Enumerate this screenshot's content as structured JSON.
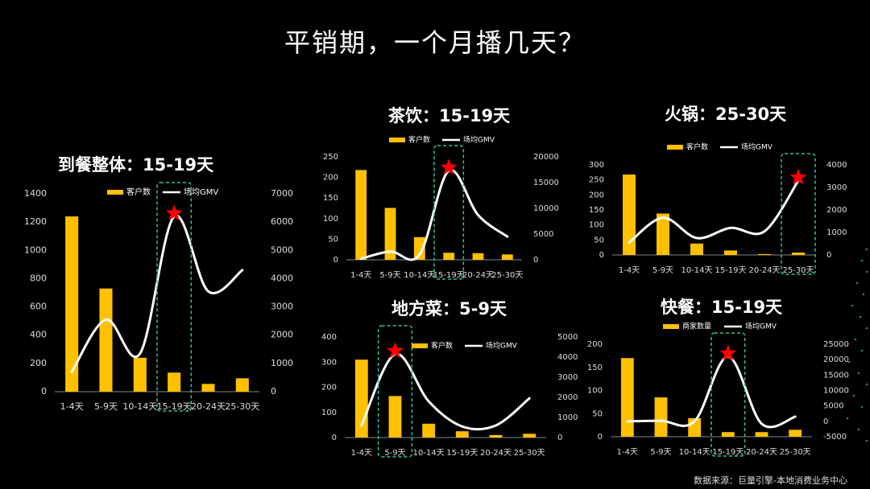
{
  "page": {
    "title": "平销期，一个月播几天？",
    "source": "数据来源：巨量引擎-本地消费业务中心"
  },
  "colors": {
    "bar": "#FFC000",
    "line": "#FFFFFF",
    "highlight": "#2FC0A0",
    "star": "#FF0000",
    "background": "#000000"
  },
  "chart_data": [
    {
      "type": "bar",
      "title": "到餐整体：15-19天",
      "categories": [
        "1-4天",
        "5-9天",
        "10-14天",
        "15-19天",
        "20-24天",
        "25-30天"
      ],
      "series": [
        {
          "name": "客户数",
          "type": "bar",
          "axis": "left",
          "values": [
            1240,
            730,
            240,
            135,
            55,
            95
          ]
        },
        {
          "name": "场均GMV",
          "type": "line",
          "axis": "right",
          "values": [
            700,
            2550,
            1350,
            6200,
            3550,
            4300
          ]
        }
      ],
      "ylim": [
        0,
        1400
      ],
      "yticks": [
        0,
        200,
        400,
        600,
        800,
        1000,
        1200,
        1400
      ],
      "y2lim": [
        0,
        7000
      ],
      "y2ticks": [
        0,
        1000,
        2000,
        3000,
        4000,
        5000,
        6000,
        7000
      ],
      "highlight_category": "15-19天",
      "grid": false,
      "legend": "top"
    },
    {
      "type": "bar",
      "title": "茶饮：15-19天",
      "categories": [
        "1-4天",
        "5-9天",
        "10-14天",
        "15-19天",
        "20-24天",
        "25-30天"
      ],
      "series": [
        {
          "name": "客户数",
          "type": "bar",
          "axis": "left",
          "values": [
            218,
            126,
            55,
            17,
            16,
            13
          ]
        },
        {
          "name": "场均GMV",
          "type": "line",
          "axis": "right",
          "values": [
            200,
            1600,
            1000,
            17300,
            8700,
            4500
          ]
        }
      ],
      "ylim": [
        0,
        250
      ],
      "yticks": [
        0,
        50,
        100,
        150,
        200,
        250
      ],
      "y2lim": [
        0,
        20000
      ],
      "y2ticks": [
        0,
        5000,
        10000,
        15000,
        20000
      ],
      "highlight_category": "15-19天",
      "grid": false,
      "legend": "top"
    },
    {
      "type": "bar",
      "title": "火锅：25-30天",
      "categories": [
        "1-4天",
        "5-9天",
        "10-14天",
        "15-19天",
        "20-24天",
        "25-30天"
      ],
      "series": [
        {
          "name": "客户数",
          "type": "bar",
          "axis": "left",
          "values": [
            268,
            138,
            38,
            15,
            3,
            8
          ]
        },
        {
          "name": "场均GMV",
          "type": "line",
          "axis": "right",
          "values": [
            550,
            1650,
            750,
            1200,
            1050,
            3300
          ]
        }
      ],
      "ylim": [
        0,
        300
      ],
      "yticks": [
        0,
        50,
        100,
        150,
        200,
        250,
        300
      ],
      "y2lim": [
        0,
        4000
      ],
      "y2ticks": [
        0,
        1000,
        2000,
        3000,
        4000
      ],
      "highlight_category": "25-30天",
      "grid": false,
      "legend": "top"
    },
    {
      "type": "bar",
      "title": "地方菜：5-9天",
      "categories": [
        "1-4天",
        "5-9天",
        "10-14天",
        "15-19天",
        "20-24天",
        "25-30天"
      ],
      "series": [
        {
          "name": "客户数",
          "type": "bar",
          "axis": "left",
          "values": [
            310,
            165,
            55,
            25,
            10,
            15
          ]
        },
        {
          "name": "场均GMV",
          "type": "line",
          "axis": "right",
          "values": [
            600,
            4150,
            1800,
            550,
            600,
            1950
          ]
        }
      ],
      "ylim": [
        0,
        400
      ],
      "yticks": [
        0,
        100,
        200,
        300,
        400
      ],
      "y2lim": [
        0,
        5000
      ],
      "y2ticks": [
        0,
        1000,
        2000,
        3000,
        4000,
        5000
      ],
      "highlight_category": "5-9天",
      "grid": false,
      "legend": "top"
    },
    {
      "type": "bar",
      "title": "快餐：15-19天",
      "categories": [
        "1-4天",
        "5-9天",
        "10-14天",
        "15-19天",
        "20-24天",
        "25-30天"
      ],
      "series": [
        {
          "name": "商家数量",
          "type": "bar",
          "axis": "left",
          "values": [
            170,
            85,
            40,
            10,
            10,
            15
          ]
        },
        {
          "name": "场均GMV",
          "type": "line",
          "axis": "right",
          "values": [
            0,
            200,
            0,
            21000,
            -800,
            1500
          ]
        }
      ],
      "ylim": [
        0,
        200
      ],
      "yticks": [
        0,
        50,
        100,
        150,
        200
      ],
      "y2lim": [
        -5000,
        25000
      ],
      "y2ticks": [
        -5000,
        0,
        5000,
        10000,
        15000,
        20000,
        25000
      ],
      "highlight_category": "15-19天",
      "grid": false,
      "legend": "top"
    }
  ]
}
